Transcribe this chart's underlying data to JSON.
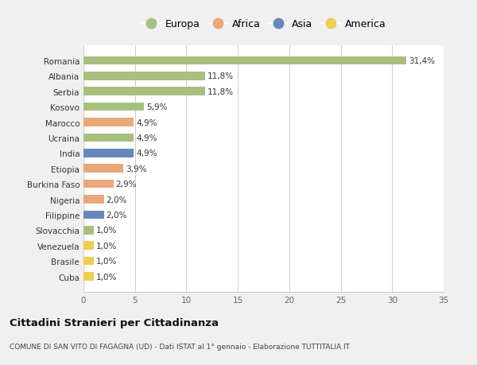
{
  "countries": [
    "Romania",
    "Albania",
    "Serbia",
    "Kosovo",
    "Marocco",
    "Ucraina",
    "India",
    "Etiopia",
    "Burkina Faso",
    "Nigeria",
    "Filippine",
    "Slovacchia",
    "Venezuela",
    "Brasile",
    "Cuba"
  ],
  "values": [
    31.4,
    11.8,
    11.8,
    5.9,
    4.9,
    4.9,
    4.9,
    3.9,
    2.9,
    2.0,
    2.0,
    1.0,
    1.0,
    1.0,
    1.0
  ],
  "labels": [
    "31,4%",
    "11,8%",
    "11,8%",
    "5,9%",
    "4,9%",
    "4,9%",
    "4,9%",
    "3,9%",
    "2,9%",
    "2,0%",
    "2,0%",
    "1,0%",
    "1,0%",
    "1,0%",
    "1,0%"
  ],
  "continents": [
    "Europa",
    "Europa",
    "Europa",
    "Europa",
    "Africa",
    "Europa",
    "Asia",
    "Africa",
    "Africa",
    "Africa",
    "Asia",
    "Europa",
    "America",
    "America",
    "America"
  ],
  "colors": {
    "Europa": "#a8bf80",
    "Africa": "#e8a878",
    "Asia": "#6688bb",
    "America": "#f0cc50"
  },
  "legend_order": [
    "Europa",
    "Africa",
    "Asia",
    "America"
  ],
  "title": "Cittadini Stranieri per Cittadinanza",
  "subtitle": "COMUNE DI SAN VITO DI FAGAGNA (UD) - Dati ISTAT al 1° gennaio - Elaborazione TUTTITALIA.IT",
  "xlim": [
    0,
    35
  ],
  "xticks": [
    0,
    5,
    10,
    15,
    20,
    25,
    30,
    35
  ],
  "bg_color": "#f0f0f0",
  "plot_bg_color": "#ffffff"
}
